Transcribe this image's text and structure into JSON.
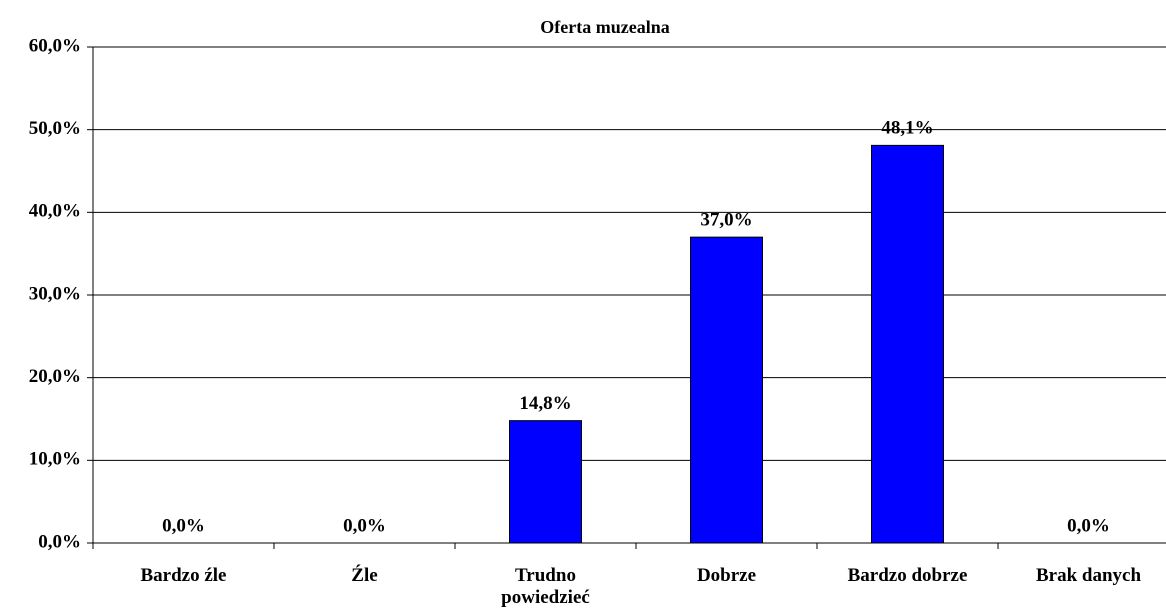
{
  "chart_data": {
    "type": "bar",
    "title": "Oferta muzealna",
    "categories": [
      "Bardzo źle",
      "Źle",
      "Trudno powiedzieć",
      "Dobrze",
      "Bardzo dobrze",
      "Brak danych"
    ],
    "values": [
      0.0,
      0.0,
      14.8,
      37.0,
      48.1,
      0.0
    ],
    "value_labels": [
      "0,0%",
      "0,0%",
      "14,8%",
      "37,0%",
      "48,1%",
      "0,0%"
    ],
    "color": "#0000ff",
    "ylim": [
      0,
      60
    ],
    "yticks": [
      {
        "value": 0,
        "label": "0,0%"
      },
      {
        "value": 10,
        "label": "10,0%"
      },
      {
        "value": 20,
        "label": "20,0%"
      },
      {
        "value": 30,
        "label": "30,0%"
      },
      {
        "value": 40,
        "label": "40,0%"
      },
      {
        "value": 50,
        "label": "50,0%"
      },
      {
        "value": 60,
        "label": "60,0%"
      }
    ],
    "grid": true
  }
}
